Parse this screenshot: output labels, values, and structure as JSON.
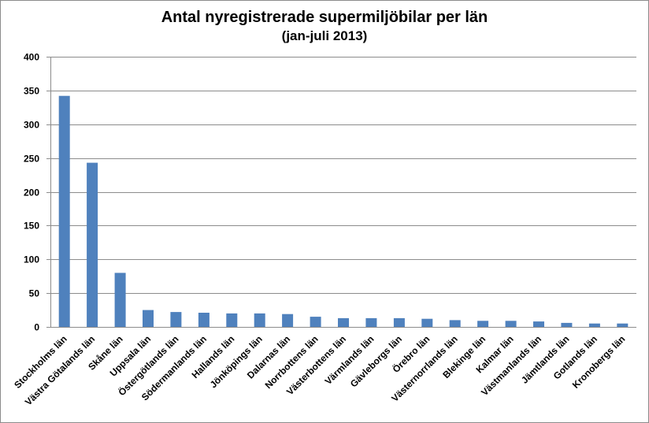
{
  "chart_data": {
    "type": "bar",
    "title": "Antal nyregistrerade supermiljöbilar per län",
    "subtitle": "(jan-juli 2013)",
    "xlabel": "",
    "ylabel": "",
    "ylim": [
      0,
      400
    ],
    "yticks": [
      "0",
      "50",
      "100",
      "150",
      "200",
      "250",
      "300",
      "350",
      "400"
    ],
    "grid": true,
    "legend": "none",
    "bar_color": "#4f81bd",
    "categories": [
      "Stockholms län",
      "Västra Götalands län",
      "Skåne län",
      "Uppsala län",
      "Östergötlands län",
      "Södermanlands län",
      "Hallands län",
      "Jönköpings län",
      "Dalarnas län",
      "Norrbottens län",
      "Västerbottens län",
      "Värmlands län",
      "Gävleborgs län",
      "Örebro län",
      "Västernorrlands län",
      "Blekinge län",
      "Kalmar län",
      "Västmanlands län",
      "Jämtlands län",
      "Gotlands län",
      "Kronobergs län"
    ],
    "values": [
      342,
      243,
      80,
      25,
      22,
      21,
      20,
      20,
      19,
      15,
      13,
      13,
      13,
      12,
      10,
      9,
      9,
      8,
      6,
      5,
      5
    ]
  }
}
